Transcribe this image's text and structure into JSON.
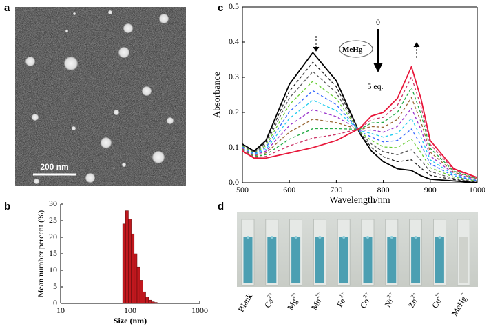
{
  "panels": {
    "a": {
      "label": "a",
      "scale_bar": "200 nm"
    },
    "b": {
      "label": "b"
    },
    "c": {
      "label": "c",
      "start": "0",
      "end": "5 eq.",
      "reagent": {
        "text": "MeHg",
        "sup": "+"
      }
    },
    "d": {
      "label": "d",
      "vials": [
        {
          "text": "Blank"
        },
        {
          "text": "Ca",
          "sup": "2+"
        },
        {
          "text": "Mg",
          "sup": "2+"
        },
        {
          "text": "Mn",
          "sup": "2+"
        },
        {
          "text": "Fe",
          "sup": "2+"
        },
        {
          "text": "Co",
          "sup": "2+"
        },
        {
          "text": "Ni",
          "sup": "2+"
        },
        {
          "text": "Zn",
          "sup": "2+"
        },
        {
          "text": "Cu",
          "sup": "2+"
        },
        {
          "text": "MeHg",
          "sup": "+"
        }
      ]
    }
  },
  "chart_data": [
    {
      "type": "histogram",
      "xlabel": "Size (nm)",
      "ylabel": "Mean number percent (%)",
      "xscale": "log",
      "xlim": [
        10,
        1000
      ],
      "xticks": [
        10,
        100,
        1000
      ],
      "ylim": [
        0,
        30
      ],
      "yticks": [
        0,
        5,
        10,
        15,
        20,
        25,
        30
      ],
      "color": "#c0181e",
      "bins": [
        78,
        85.8,
        94.4,
        103.8,
        114.2,
        125.6,
        138.2,
        152,
        167.2,
        183.9,
        202.3,
        222.5,
        244.8
      ],
      "values": [
        24,
        28,
        25.5,
        21,
        15,
        11,
        7,
        3.5,
        2,
        1,
        0.5,
        0.3
      ]
    },
    {
      "type": "line",
      "xlabel": "Wavelength/nm",
      "ylabel": "Absorbance",
      "xlim": [
        500,
        1000
      ],
      "xticks": [
        500,
        600,
        700,
        800,
        900,
        1000
      ],
      "ylim": [
        0,
        0.5
      ],
      "yticks": [
        {
          "value": 0,
          "label": "0.0"
        },
        0.1,
        0.2,
        0.3,
        0.4,
        0.5
      ],
      "x": [
        500,
        525,
        550,
        600,
        650,
        700,
        750,
        775,
        800,
        830,
        860,
        880,
        900,
        950,
        1000
      ],
      "series": [
        {
          "color": "#000000",
          "style": "solid",
          "values": [
            0.11,
            0.09,
            0.12,
            0.28,
            0.37,
            0.29,
            0.14,
            0.09,
            0.06,
            0.04,
            0.035,
            0.02,
            0.01,
            0.005,
            0.0
          ]
        },
        {
          "color": "#222222",
          "style": "dashed",
          "values": [
            0.108,
            0.088,
            0.115,
            0.26,
            0.343,
            0.273,
            0.142,
            0.1,
            0.074,
            0.06,
            0.065,
            0.042,
            0.021,
            0.009,
            0.002
          ]
        },
        {
          "color": "#555555",
          "style": "dashed",
          "values": [
            0.106,
            0.086,
            0.11,
            0.241,
            0.316,
            0.256,
            0.143,
            0.11,
            0.088,
            0.08,
            0.094,
            0.064,
            0.032,
            0.012,
            0.003
          ]
        },
        {
          "color": "#66cc33",
          "style": "dashed",
          "values": [
            0.104,
            0.084,
            0.105,
            0.222,
            0.289,
            0.239,
            0.145,
            0.12,
            0.102,
            0.1,
            0.124,
            0.086,
            0.043,
            0.016,
            0.005
          ]
        },
        {
          "color": "#3366ff",
          "style": "dashed",
          "values": [
            0.102,
            0.082,
            0.1,
            0.202,
            0.262,
            0.222,
            0.146,
            0.13,
            0.116,
            0.12,
            0.153,
            0.108,
            0.054,
            0.019,
            0.006
          ]
        },
        {
          "color": "#22ccee",
          "style": "dashed",
          "values": [
            0.1,
            0.08,
            0.095,
            0.183,
            0.235,
            0.205,
            0.148,
            0.14,
            0.13,
            0.14,
            0.183,
            0.13,
            0.065,
            0.023,
            0.008
          ]
        },
        {
          "color": "#9933cc",
          "style": "dashed",
          "values": [
            0.098,
            0.078,
            0.09,
            0.163,
            0.208,
            0.188,
            0.149,
            0.15,
            0.144,
            0.16,
            0.212,
            0.152,
            0.076,
            0.026,
            0.009
          ]
        },
        {
          "color": "#996633",
          "style": "dashed",
          "values": [
            0.096,
            0.076,
            0.085,
            0.144,
            0.181,
            0.171,
            0.151,
            0.16,
            0.158,
            0.18,
            0.242,
            0.174,
            0.087,
            0.03,
            0.011
          ]
        },
        {
          "color": "#22aa44",
          "style": "dashed",
          "values": [
            0.094,
            0.074,
            0.08,
            0.124,
            0.154,
            0.154,
            0.152,
            0.17,
            0.172,
            0.2,
            0.271,
            0.196,
            0.098,
            0.033,
            0.012
          ]
        },
        {
          "color": "#cc3366",
          "style": "dashed",
          "values": [
            0.092,
            0.072,
            0.075,
            0.105,
            0.127,
            0.137,
            0.154,
            0.18,
            0.186,
            0.22,
            0.301,
            0.218,
            0.109,
            0.037,
            0.014
          ]
        },
        {
          "color": "#e8173a",
          "style": "solid",
          "values": [
            0.09,
            0.07,
            0.07,
            0.085,
            0.1,
            0.12,
            0.155,
            0.19,
            0.2,
            0.24,
            0.33,
            0.24,
            0.12,
            0.04,
            0.015
          ]
        }
      ]
    }
  ]
}
